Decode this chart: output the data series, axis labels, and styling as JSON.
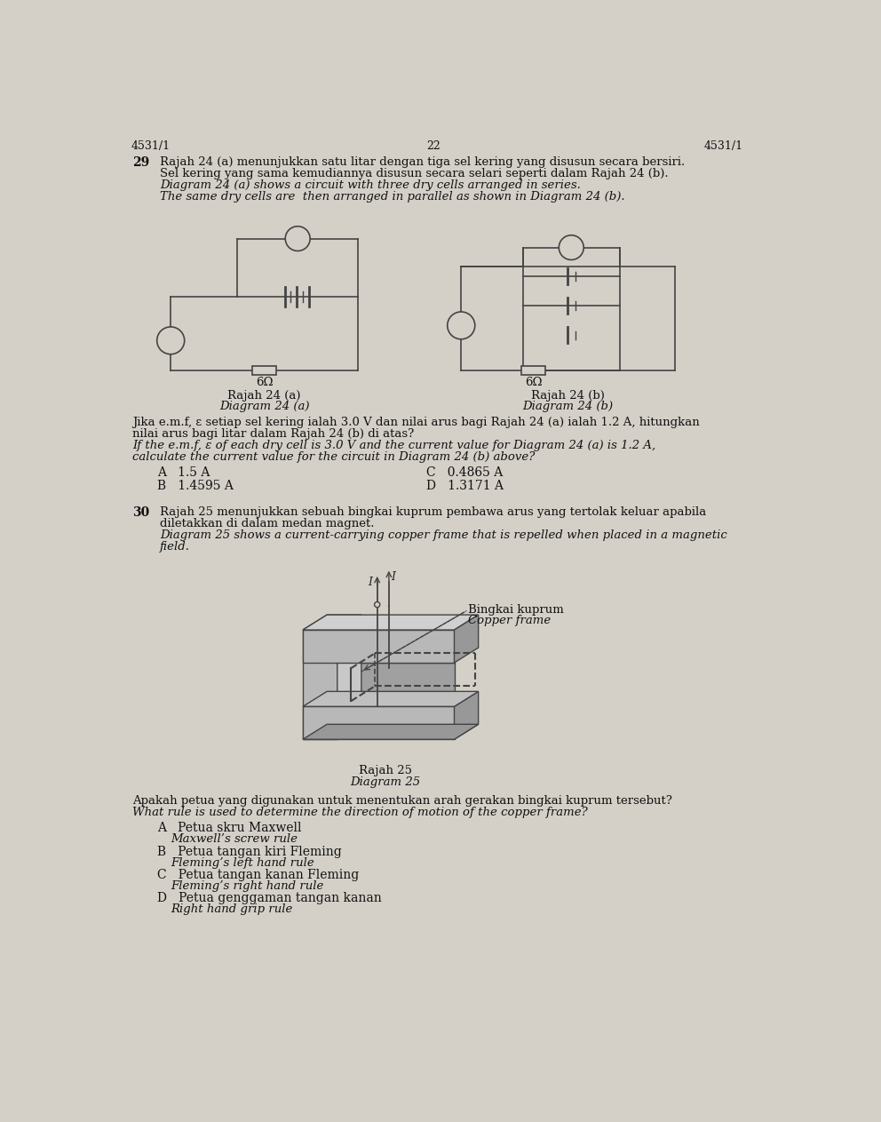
{
  "bg_color": "#d4d0c8",
  "header_left": "4531/1",
  "header_center": "22",
  "q29_num": "29",
  "q29_text1": "Rajah 24 (a) menunjukkan satu litar dengan tiga sel kering yang disusun secara bersiri.",
  "q29_text2": "Sel kering yang sama kemudiannya disusun secara selari seperti dalam Rajah 24 (b).",
  "q29_text3": "Diagram 24 (a) shows a circuit with three dry cells arranged in series.",
  "q29_text4": "The same dry cells are  then arranged in parallel as shown in Diagram 24 (b).",
  "q29_label_a1": "Rajah 24 (a)",
  "q29_label_a2": "Diagram 24 (a)",
  "q29_label_b1": "Rajah 24 (b)",
  "q29_label_b2": "Diagram 24 (b)",
  "q29_q1": "Jika e.m.f, ε setiap sel kering ialah 3.0 V dan nilai arus bagi Rajah 24 (a) ialah 1.2 A, hitungkan",
  "q29_q2": "nilai arus bagi litar dalam Rajah 24 (b) di atas?",
  "q29_q3": "If the e.m.f, ε of each dry cell is 3.0 V and the current value for Diagram 24 (a) is 1.2 A,",
  "q29_q4": "calculate the current value for the circuit in Diagram 24 (b) above?",
  "q29_A": "A   1.5 A",
  "q29_C": "C   0.4865 A",
  "q29_B": "B   1.4595 A",
  "q29_D": "D   1.3171 A",
  "q30_num": "30",
  "q30_text1": "Rajah 25 menunjukkan sebuah bingkai kuprum pembawa arus yang tertolak keluar apabila",
  "q30_text2": "diletakkan di dalam medan magnet.",
  "q30_text3": "Diagram 25 shows a current-carrying copper frame that is repelled when placed in a magnetic",
  "q30_text4": "field.",
  "q30_label1": "Rajah 25",
  "q30_label2": "Diagram 25",
  "q30_q1": "Apakah petua yang digunakan untuk menentukan arah gerakan bingkai kuprum tersebut?",
  "q30_q2": "What rule is used to determine the direction of motion of the copper frame?",
  "q30_A1": "A   Petua skru Maxwell",
  "q30_A2": "Maxwell’s screw rule",
  "q30_B1": "B   Petua tangan kiri Fleming",
  "q30_B2": "Fleming’s left hand rule",
  "q30_C1": "C   Petua tangan kanan Fleming",
  "q30_C2": "Fleming’s right hand rule",
  "q30_D1": "D   Petua genggaman tangan kanan",
  "q30_D2": "Right hand grip rule"
}
